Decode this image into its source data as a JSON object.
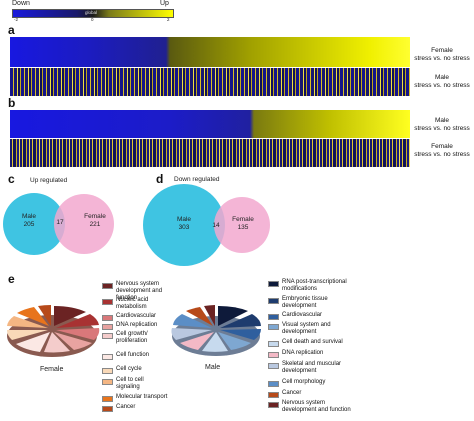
{
  "scale": {
    "low_label": "Down",
    "high_label": "Up",
    "center_label": "global",
    "ticks": [
      "-2",
      "0",
      "2"
    ],
    "low_color": "#1a1adc",
    "high_color": "#ffff00"
  },
  "panel_a": {
    "letter": "a",
    "rows": [
      {
        "line1": "Female",
        "line2": "stress vs. no stress"
      },
      {
        "line1": "Male",
        "line2": "stress vs. no stress"
      }
    ]
  },
  "panel_b": {
    "letter": "b",
    "rows": [
      {
        "line1": "Male",
        "line2": "stress vs. no stress"
      },
      {
        "line1": "Female",
        "line2": "stress vs. no stress"
      }
    ]
  },
  "panel_c": {
    "letter": "c",
    "title": "Up regulated",
    "left_name": "Male",
    "left_count": "205",
    "overlap": "17",
    "right_name": "Female",
    "right_count": "221",
    "left_color": "#3fc4e2",
    "right_color": "#f2a8cf"
  },
  "panel_d": {
    "letter": "d",
    "title": "Down regulated",
    "left_name": "Male",
    "left_count": "303",
    "overlap": "14",
    "right_name": "Female",
    "right_count": "135",
    "left_color": "#3fc4e2",
    "right_color": "#f2a8cf"
  },
  "panel_e": {
    "letter": "e",
    "female_label": "Female",
    "male_label": "Male",
    "female_legend": [
      {
        "label": "Nervous system development and function",
        "color": "#6b2323"
      },
      {
        "label": "Nucleic acid metabolism",
        "color": "#a83232"
      },
      {
        "label": "Cardiovascular",
        "color": "#d9787a"
      },
      {
        "label": "DNA replication",
        "color": "#e8a3a1"
      },
      {
        "label": "Cell growth/ proliferation",
        "color": "#f4cccb"
      },
      {
        "label": "Cell function",
        "color": "#fbe8e4"
      },
      {
        "label": "Cell cycle",
        "color": "#f9d9b8"
      },
      {
        "label": "Cell to cell signaling",
        "color": "#f4b683"
      },
      {
        "label": "Molecular transport",
        "color": "#e8741c"
      },
      {
        "label": "Cancer",
        "color": "#b74a1a"
      }
    ],
    "male_legend": [
      {
        "label": "RNA post-transcriptional modifications",
        "color": "#0e1a3a"
      },
      {
        "label": "Embryonic tissue development",
        "color": "#1e3c6e"
      },
      {
        "label": "Cardiovascular",
        "color": "#2f5f9e"
      },
      {
        "label": "Visual system and development",
        "color": "#7ea7d1"
      },
      {
        "label": "Cell death and survival",
        "color": "#c7daee"
      },
      {
        "label": "DNA replication",
        "color": "#f3b9c6"
      },
      {
        "label": "Skeletal and muscular development",
        "color": "#b9c8e0"
      },
      {
        "label": "Cell morphology",
        "color": "#5b8ec6"
      },
      {
        "label": "Cancer",
        "color": "#b74a1a"
      },
      {
        "label": "Nervous system development and function",
        "color": "#6b2323"
      }
    ]
  }
}
